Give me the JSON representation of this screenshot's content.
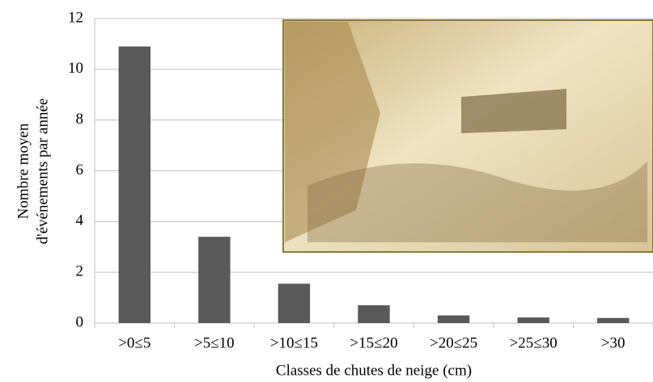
{
  "chart_data": {
    "type": "bar",
    "xlabel": "Classes de chutes de neige (cm)",
    "ylabel": [
      "Nombre moyen",
      "d'événements par année"
    ],
    "categories": [
      ">0≤5",
      ">5≤10",
      ">10≤15",
      ">15≤20",
      ">20≤25",
      ">25≤30",
      ">30"
    ],
    "values": [
      10.9,
      3.4,
      1.55,
      0.7,
      0.3,
      0.22,
      0.2
    ],
    "color": "#595959",
    "ylim": [
      0,
      12
    ],
    "yticks": [
      0,
      2,
      4,
      6,
      8,
      10,
      12
    ],
    "grid": true
  }
}
